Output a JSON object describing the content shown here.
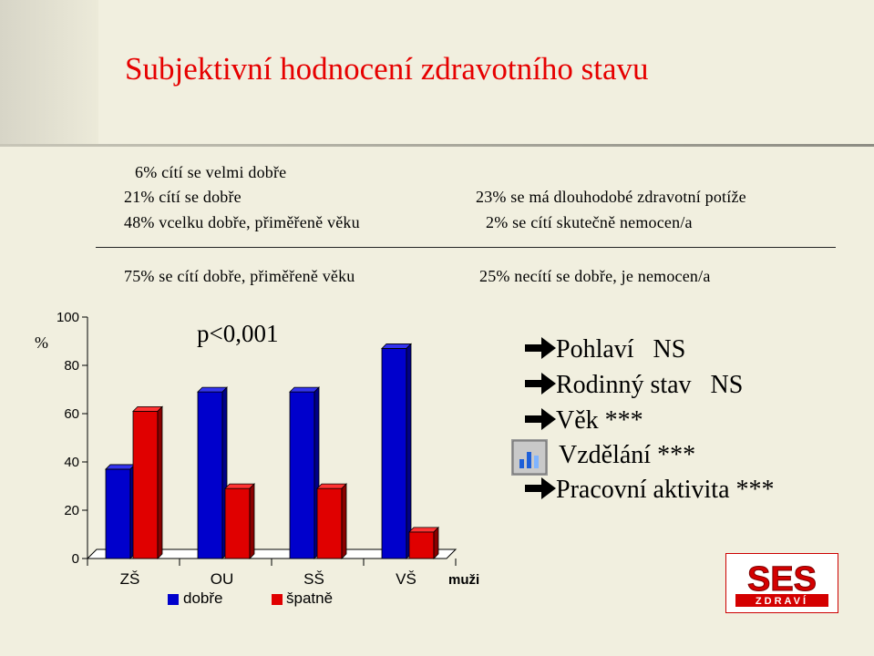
{
  "title": "Subjektivní hodnocení zdravotního stavu",
  "stats_left": {
    "lines": [
      "6% cítí se velmi dobře",
      "21% cítí se dobře",
      "48% vcelku dobře, přiměřeně věku"
    ],
    "summary": "75% se cítí dobře, přiměřeně věku"
  },
  "stats_right": {
    "lines": [
      "23% se má dlouhodobé zdravotní potíže",
      "2% se cítí skutečně nemocen/a"
    ],
    "summary": "25% necítí se dobře, je nemocen/a"
  },
  "p_value": "p<0,001",
  "factors": [
    {
      "label": "Pohlaví   NS"
    },
    {
      "label": "Rodinný stav   NS"
    },
    {
      "label": "Věk ***"
    },
    {
      "label": "Vzdělání ***"
    },
    {
      "label": "Pracovní aktivita ***"
    }
  ],
  "logo": {
    "top": "SES",
    "bottom": "ZDRAVÍ"
  },
  "colors": {
    "dobre": "#0000cc",
    "spatne": "#e00000",
    "title": "#e60000",
    "background": "#f1efdf"
  },
  "chart_data": {
    "type": "bar",
    "categories": [
      "ZŠ",
      "OU",
      "SŠ",
      "VŠ"
    ],
    "series": [
      {
        "name": "dobře",
        "values": [
          37,
          69,
          69,
          87
        ]
      },
      {
        "name": "špatně",
        "values": [
          61,
          29,
          29,
          11
        ]
      }
    ],
    "ylabel": "%",
    "ylim": [
      0,
      100
    ],
    "yticks": [
      0,
      20,
      40,
      60,
      80,
      100
    ],
    "group_label": "muži",
    "grid": false,
    "legend_position": "bottom"
  }
}
